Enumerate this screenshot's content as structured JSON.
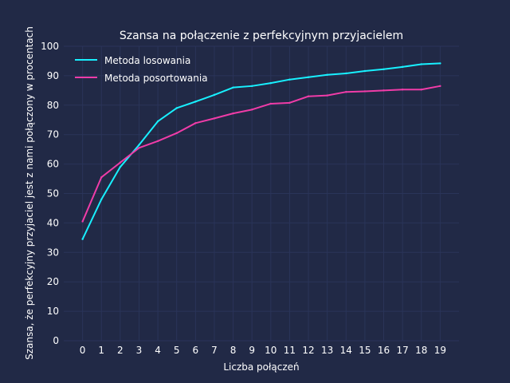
{
  "chart_data": {
    "type": "line",
    "title": "Szansa na połączenie z perfekcyjnym przyjacielem",
    "xlabel": "Liczba połączeń",
    "ylabel": "Szansa, że perfekcyjny przyjaciel jest z nami połączony w procentach",
    "x": [
      0,
      1,
      2,
      3,
      4,
      5,
      6,
      7,
      8,
      9,
      10,
      11,
      12,
      13,
      14,
      15,
      16,
      17,
      18,
      19
    ],
    "xticks": [
      "0",
      "1",
      "2",
      "3",
      "4",
      "5",
      "6",
      "7",
      "8",
      "9",
      "10",
      "11",
      "12",
      "13",
      "14",
      "15",
      "16",
      "17",
      "18",
      "19"
    ],
    "xlim": [
      -1.0,
      20.0
    ],
    "yticks": [
      "0",
      "10",
      "20",
      "30",
      "40",
      "50",
      "60",
      "70",
      "80",
      "90",
      "100"
    ],
    "ylim": [
      0,
      100
    ],
    "grid": true,
    "legend": "top-left",
    "series": [
      {
        "name": "Metoda losowania",
        "color": "#18f0ff",
        "values": [
          34.5,
          48.0,
          59.0,
          66.5,
          74.5,
          79.0,
          81.2,
          83.5,
          86.0,
          86.5,
          87.5,
          88.7,
          89.5,
          90.3,
          90.8,
          91.6,
          92.2,
          93.0,
          93.9,
          94.2
        ]
      },
      {
        "name": "Metoda posortowania",
        "color": "#f03ca8",
        "values": [
          40.5,
          55.5,
          60.5,
          65.5,
          67.8,
          70.5,
          73.9,
          75.5,
          77.2,
          78.5,
          80.5,
          80.8,
          83.0,
          83.3,
          84.5,
          84.7,
          85.0,
          85.3,
          85.3,
          86.5
        ]
      }
    ]
  },
  "colors": {
    "background": "#212946",
    "grid": "#2a3459",
    "text": "#ffffff"
  }
}
